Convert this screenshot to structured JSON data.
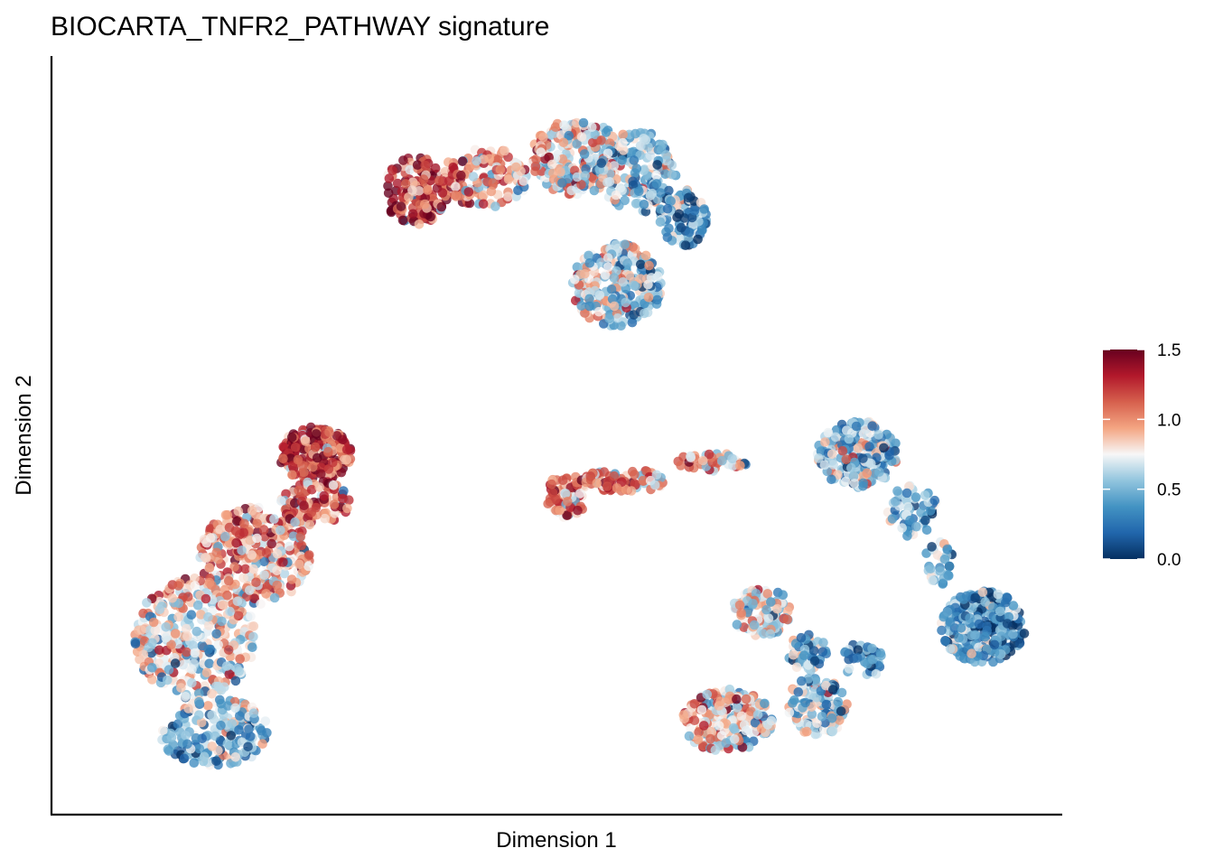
{
  "chart_data": {
    "type": "scatter",
    "title": "BIOCARTA_TNFR2_PATHWAY signature",
    "xlabel": "Dimension 1",
    "ylabel": "Dimension 2",
    "xlim": [
      0,
      100
    ],
    "ylim": [
      0,
      100
    ],
    "x_ticks_shown": false,
    "y_ticks_shown": false,
    "grid": false,
    "legend": {
      "type": "colorbar",
      "placement": "right",
      "range": [
        0.0,
        1.5
      ],
      "ticks": [
        "0.0",
        "0.5",
        "1.0",
        "1.5"
      ],
      "colors": [
        "#053061",
        "#2166ac",
        "#4393c3",
        "#92c5de",
        "#f7f7f7",
        "#f4a582",
        "#d6604d",
        "#b2182b",
        "#67001f"
      ]
    },
    "clusters": [
      {
        "name": "top",
        "value_gradient": "x",
        "value_from": 1.3,
        "value_to": 0.35,
        "blobs": [
          {
            "cx": 36.0,
            "cy": 82.5,
            "rx": 3.2,
            "ry": 4.5,
            "n": 150
          },
          {
            "cx": 43.0,
            "cy": 84.5,
            "rx": 4.2,
            "ry": 4.2,
            "n": 130
          },
          {
            "cx": 52.0,
            "cy": 87.0,
            "rx": 4.5,
            "ry": 5.0,
            "n": 220
          },
          {
            "cx": 58.0,
            "cy": 85.0,
            "rx": 4.0,
            "ry": 5.5,
            "n": 170
          },
          {
            "cx": 62.5,
            "cy": 79.0,
            "rx": 2.5,
            "ry": 4.0,
            "n": 90
          },
          {
            "cx": 56.0,
            "cy": 70.0,
            "rx": 4.5,
            "ry": 5.5,
            "n": 260
          }
        ]
      },
      {
        "name": "left",
        "value_gradient": "y",
        "value_from": 0.45,
        "value_to": 1.3,
        "blobs": [
          {
            "cx": 26.0,
            "cy": 47.5,
            "rx": 3.6,
            "ry": 3.6,
            "n": 230
          },
          {
            "cx": 26.0,
            "cy": 41.0,
            "rx": 3.5,
            "ry": 3.0,
            "n": 100
          },
          {
            "cx": 20.0,
            "cy": 34.0,
            "rx": 5.5,
            "ry": 6.5,
            "n": 300
          },
          {
            "cx": 14.0,
            "cy": 23.0,
            "rx": 6.0,
            "ry": 8.0,
            "n": 330
          },
          {
            "cx": 16.0,
            "cy": 10.5,
            "rx": 5.5,
            "ry": 4.5,
            "n": 180
          }
        ]
      },
      {
        "name": "middle",
        "value_gradient": "x",
        "value_from": 1.15,
        "value_to": 0.25,
        "blobs": [
          {
            "cx": 51.0,
            "cy": 42.0,
            "rx": 2.0,
            "ry": 3.0,
            "n": 80
          },
          {
            "cx": 57.0,
            "cy": 44.0,
            "rx": 4.5,
            "ry": 1.5,
            "n": 80
          },
          {
            "cx": 65.5,
            "cy": 46.5,
            "rx": 3.5,
            "ry": 1.3,
            "n": 40
          },
          {
            "cx": 80.0,
            "cy": 47.5,
            "rx": 4.0,
            "ry": 4.5,
            "n": 230
          },
          {
            "cx": 85.5,
            "cy": 40.0,
            "rx": 2.5,
            "ry": 3.5,
            "n": 60
          },
          {
            "cx": 88.0,
            "cy": 33.0,
            "rx": 1.5,
            "ry": 3.0,
            "n": 30
          },
          {
            "cx": 92.5,
            "cy": 24.5,
            "rx": 4.2,
            "ry": 4.8,
            "n": 300
          }
        ]
      },
      {
        "name": "bottom",
        "value_gradient": "x",
        "value_from": 1.0,
        "value_to": 0.3,
        "blobs": [
          {
            "cx": 70.5,
            "cy": 26.5,
            "rx": 3.0,
            "ry": 3.2,
            "n": 110
          },
          {
            "cx": 75.0,
            "cy": 21.0,
            "rx": 2.0,
            "ry": 2.5,
            "n": 50
          },
          {
            "cx": 67.0,
            "cy": 12.0,
            "rx": 4.5,
            "ry": 4.2,
            "n": 220
          },
          {
            "cx": 76.0,
            "cy": 14.0,
            "rx": 3.0,
            "ry": 4.0,
            "n": 130
          },
          {
            "cx": 80.5,
            "cy": 20.0,
            "rx": 2.0,
            "ry": 2.5,
            "n": 40
          }
        ]
      }
    ]
  }
}
